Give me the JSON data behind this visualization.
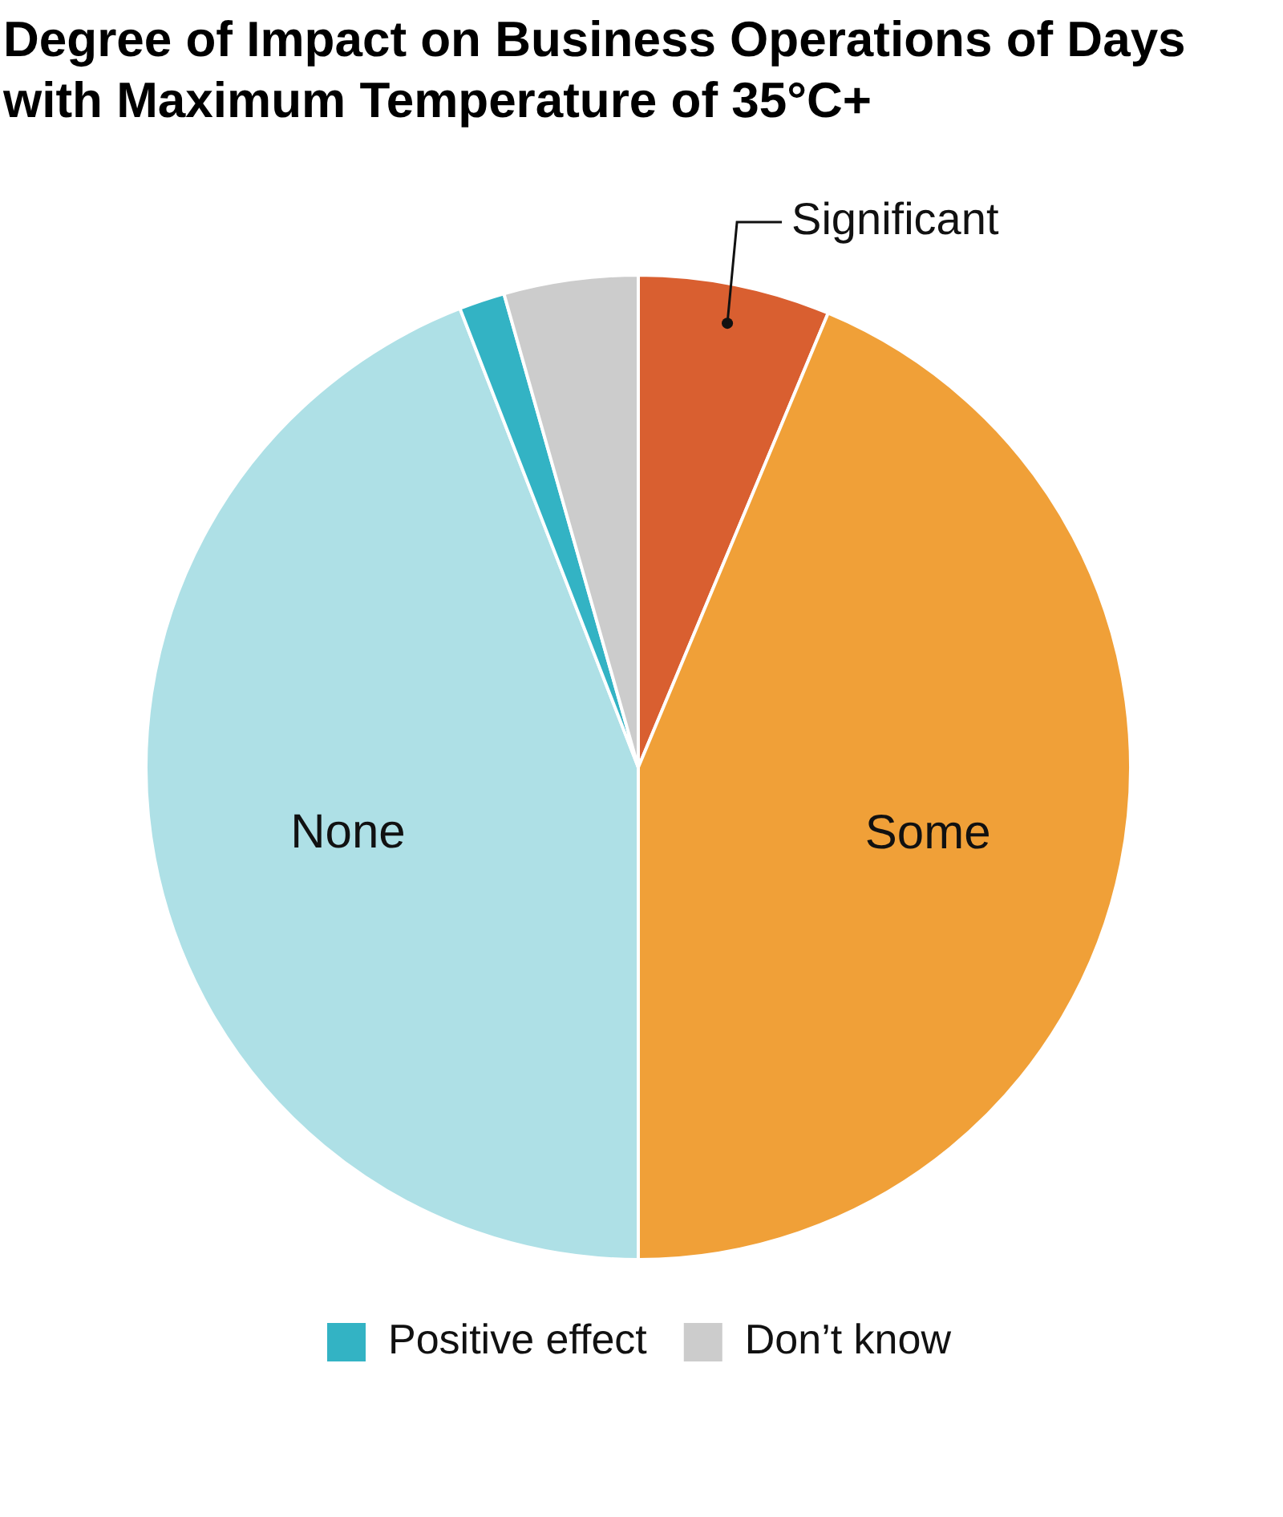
{
  "chart_data": {
    "type": "pie",
    "title": "Degree of Impact on Business Operations of Days with Maximum Temperature of 35°C+",
    "categories": [
      "Significant",
      "Some",
      "None",
      "Positive effect",
      "Don’t know"
    ],
    "values": [
      6.3,
      43.7,
      44.1,
      1.5,
      4.4
    ],
    "colors": [
      "#d95f30",
      "#f0a038",
      "#aee0e6",
      "#33b3c4",
      "#cccccc"
    ],
    "legend": "bottom"
  }
}
